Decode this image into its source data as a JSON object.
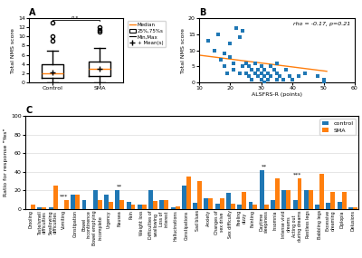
{
  "chart_data": [
    {
      "type": "box",
      "title": "A",
      "ylabel": "Total NMS score",
      "categories": [
        "Control",
        "SMA"
      ],
      "boxes": [
        {
          "median": 2.0,
          "q1": 1.0,
          "q3": 4.0,
          "whislo": 0.0,
          "whishi": 7.0,
          "mean": 2.2,
          "fliers": [
            9.0,
            10.0,
            13.0
          ]
        },
        {
          "median": 3.0,
          "q1": 1.5,
          "q3": 4.5,
          "whislo": 0.0,
          "whishi": 7.5,
          "mean": 3.0,
          "fliers": [
            11.0,
            11.5,
            12.0
          ]
        }
      ],
      "ylim": [
        0,
        14
      ],
      "yticks": [
        0,
        2,
        4,
        6,
        8,
        10,
        12,
        14
      ],
      "annotations": [
        {
          "text": "n.s.",
          "categories": [
            "Control",
            "SMA"
          ]
        }
      ],
      "legend_entries": [
        "Median",
        "25%,75%s",
        "Min,Max",
        "+ Mean(s)"
      ]
    },
    {
      "type": "scatter",
      "title": "B",
      "xlabel": "ALSFRS-R (points)",
      "ylabel": "Total NMS score",
      "annotations": [
        "rho = -0.17, p=0.21"
      ],
      "series": [
        {
          "type": "scatter",
          "marker": "s",
          "color": "#1f77b4",
          "x": [
            13,
            15,
            16,
            17,
            18,
            18,
            19,
            20,
            20,
            21,
            21,
            22,
            23,
            23,
            24,
            24,
            25,
            25,
            26,
            26,
            27,
            27,
            28,
            28,
            29,
            29,
            30,
            30,
            30,
            31,
            31,
            31,
            32,
            32,
            33,
            33,
            34,
            35,
            35,
            35,
            36,
            37,
            38,
            39,
            40,
            42,
            44,
            48,
            50,
            50,
            50
          ],
          "values": [
            13,
            10,
            15,
            7,
            5,
            9,
            3,
            8,
            12,
            4,
            6,
            17,
            3,
            14,
            5,
            16,
            6,
            3,
            5,
            2,
            4,
            1,
            3,
            6,
            2,
            4,
            1,
            3,
            5,
            0,
            2,
            4,
            1,
            3,
            2,
            5,
            4,
            1,
            3,
            6,
            2,
            1,
            4,
            2,
            1,
            2,
            3,
            2,
            0,
            1,
            0
          ]
        },
        {
          "type": "line",
          "color": "#ff7f0e",
          "x": [
            10,
            51
          ],
          "values": [
            8.5,
            3.5
          ]
        }
      ],
      "xlim": [
        10,
        60
      ],
      "xticks": [
        10,
        20,
        30,
        40,
        50,
        60
      ],
      "ylim": [
        0,
        20
      ],
      "yticks": [
        0,
        5,
        10,
        15,
        20
      ]
    },
    {
      "type": "bar",
      "title": "C",
      "ylabel": "Ratio for response \"Yes\"",
      "categories": [
        "Drooling",
        "Taste/smell\ndifficulties",
        "Swallowing\ndifficulties",
        "Vomiting",
        "Constipation",
        "Bowel\nincontinence",
        "Bowel emptying\nincomplete",
        "Urgency",
        "Nausea",
        "Pain",
        "Weight loss",
        "Difficulties of\nswallowing",
        "Loss of\ninterest",
        "Hallucinations",
        "Constipations",
        "Sad blues",
        "Anxiety",
        "Changes of\nsex drive",
        "Sex difficulty",
        "Feeling\ndizzy",
        "Fainting",
        "Daytime\nsleepiness",
        "Insomnia",
        "Intense vivid\ndreams",
        "Acting out\nduring dreams",
        "Restless legs",
        "Babbling legs",
        "Excessive\ndreaming",
        "Diplopia",
        "Delusions"
      ],
      "series": [
        {
          "name": "control",
          "values": [
            0,
            2,
            2,
            0,
            15,
            10,
            20,
            15,
            20,
            8,
            5,
            20,
            10,
            2,
            25,
            7,
            12,
            6,
            17,
            5,
            8,
            42,
            10,
            20,
            10,
            20,
            5,
            7,
            8,
            2
          ]
        },
        {
          "name": "SMA",
          "values": [
            5,
            2,
            25,
            10,
            15,
            0,
            10,
            8,
            10,
            5,
            5,
            9,
            10,
            3,
            35,
            30,
            12,
            12,
            6,
            18,
            5,
            5,
            33,
            20,
            33,
            20,
            38,
            18,
            18,
            2
          ]
        }
      ],
      "ylim": [
        0,
        100
      ],
      "yticks": [
        0,
        20,
        40,
        60,
        80,
        100
      ],
      "grid": "y",
      "legend": "upper right",
      "annotations": [
        {
          "category": "Vomiting",
          "text": "***"
        },
        {
          "category": "Nausea",
          "text": "**"
        },
        {
          "category": "Daytime\nsleepiness",
          "text": "**"
        },
        {
          "category": "Acting out\nduring dreams",
          "text": "***"
        }
      ]
    }
  ]
}
